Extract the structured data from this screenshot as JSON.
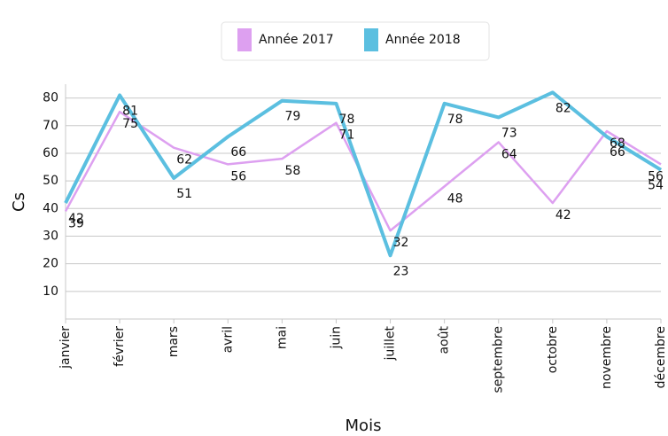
{
  "chart_data": {
    "type": "line",
    "x_label": "Mois",
    "y_label": "Cs",
    "categories": [
      "janvier",
      "février",
      "mars",
      "avril",
      "mai",
      "juin",
      "juillet",
      "août",
      "septembre",
      "octobre",
      "novembre",
      "décembre"
    ],
    "series": [
      {
        "name": "Année 2017",
        "color": "#dda0f0",
        "values": [
          39,
          75,
          62,
          56,
          58,
          71,
          32,
          48,
          64,
          42,
          68,
          56
        ]
      },
      {
        "name": "Année 2018",
        "color": "#5bbfe0",
        "values": [
          42,
          81,
          51,
          66,
          79,
          78,
          23,
          78,
          73,
          82,
          66,
          54
        ]
      }
    ],
    "ylim": [
      0,
      85
    ],
    "yticks": [
      10,
      20,
      30,
      40,
      50,
      60,
      70,
      80
    ],
    "grid": true
  }
}
